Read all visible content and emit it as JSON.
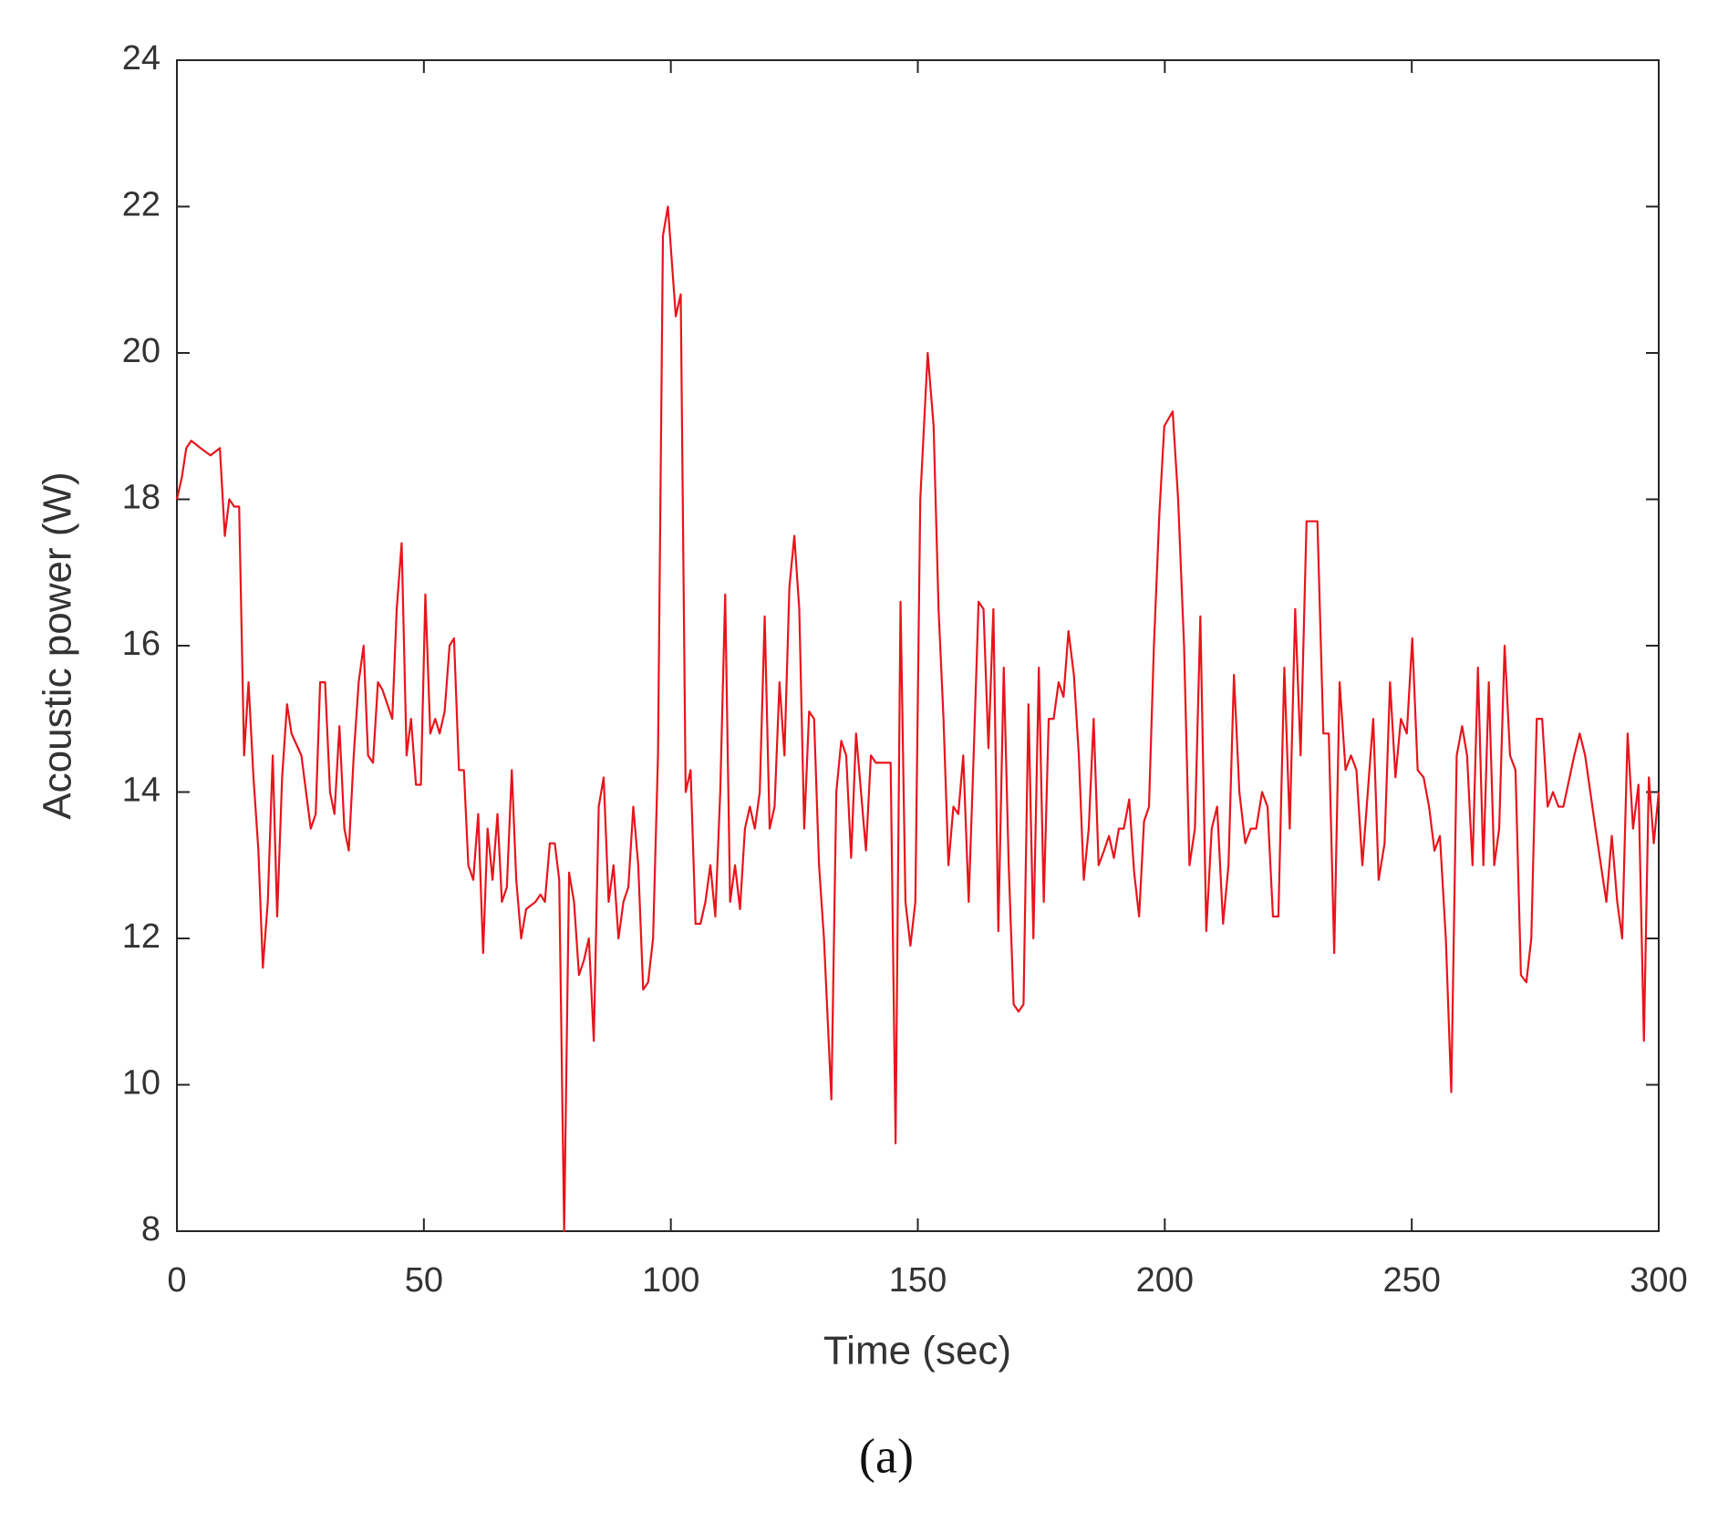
{
  "chart_data": {
    "type": "line",
    "title": "(a)",
    "xlabel": "Time (sec)",
    "ylabel": "Acoustic power (W)",
    "x": [
      0,
      1,
      1.9,
      2.9,
      4.8,
      6.8,
      8.7,
      9.7,
      10.6,
      11.6,
      12.6,
      13.6,
      14.5,
      15.5,
      16.5,
      17.4,
      18.4,
      19.4,
      20.3,
      21.3,
      22.3,
      23.2,
      25.2,
      27.1,
      28.1,
      29,
      30,
      31,
      31.9,
      32.9,
      33.9,
      34.8,
      35.8,
      36.8,
      37.8,
      38.7,
      39.7,
      40.7,
      41.6,
      42.6,
      43.6,
      44.5,
      45.5,
      46.5,
      47.4,
      48.4,
      49.4,
      50.3,
      51.3,
      52.3,
      53.2,
      54.2,
      55.2,
      56.1,
      57.1,
      58.1,
      59,
      60,
      61,
      62,
      62.9,
      63.9,
      64.9,
      65.8,
      66.8,
      67.8,
      68.7,
      69.7,
      70.7,
      72.6,
      73.6,
      74.5,
      75.5,
      76.5,
      77.4,
      78.4,
      79.4,
      80.4,
      81.4,
      82.4,
      83.4,
      84.4,
      85.4,
      86.4,
      87.4,
      88.4,
      89.4,
      90.4,
      91.4,
      92.4,
      93.4,
      94.4,
      95.4,
      96.4,
      97.4,
      98.4,
      99.4,
      101,
      102,
      103,
      104,
      105,
      106,
      107,
      108,
      109,
      110,
      111,
      112,
      113,
      114,
      115,
      116,
      117,
      118,
      119,
      120,
      121,
      122,
      123,
      124,
      125,
      126,
      127,
      128,
      129,
      130,
      131,
      132.5,
      133.5,
      134.5,
      135.5,
      136.5,
      137.5,
      138.5,
      139.5,
      140.5,
      141.5,
      143.5,
      144.5,
      145.5,
      146.5,
      147.5,
      148.5,
      149.5,
      150.5,
      152,
      153.2,
      154.2,
      155.2,
      156.2,
      157.2,
      158.2,
      159.2,
      160.3,
      161.3,
      162.3,
      163.3,
      164.3,
      165.3,
      166.3,
      167.4,
      168.4,
      169.4,
      170.4,
      171.4,
      172.4,
      173.4,
      174.5,
      175.5,
      176.5,
      177.5,
      178.5,
      179.5,
      180.5,
      181.6,
      182.6,
      183.6,
      184.6,
      185.6,
      186.6,
      187.7,
      188.7,
      189.7,
      190.7,
      191.7,
      192.8,
      193.8,
      194.8,
      195.8,
      196.8,
      197.8,
      198.9,
      199.9,
      201.6,
      202.7,
      203.9,
      205,
      206.1,
      207.2,
      208.4,
      209.5,
      210.6,
      211.8,
      212.9,
      214,
      215.1,
      216.3,
      217.4,
      218.5,
      219.7,
      220.8,
      221.9,
      223,
      224.2,
      225.3,
      226.4,
      227.5,
      228.7,
      229.8,
      230.9,
      232.1,
      233.2,
      234.3,
      235.4,
      236.6,
      237.7,
      238.8,
      240,
      241.1,
      242.2,
      243.3,
      244.5,
      245.6,
      246.7,
      247.8,
      249,
      250.1,
      251.2,
      252.4,
      253.5,
      254.6,
      255.7,
      256.9,
      258,
      259.1,
      260.2,
      261.2,
      262.3,
      263.4,
      264.5,
      265.6,
      266.7,
      267.7,
      268.8,
      269.9,
      271,
      272.1,
      273.2,
      274.2,
      275.3,
      276.4,
      277.5,
      278.6,
      279.7,
      280.7,
      282.9,
      284,
      285.1,
      287.2,
      288.3,
      289.4,
      290.5,
      291.6,
      292.6,
      293.7,
      294.8,
      295.9,
      297,
      298,
      299,
      300
    ],
    "series": [
      {
        "color": "#e8141c",
        "values": [
          18.0,
          18.3,
          18.7,
          18.8,
          18.7,
          18.6,
          18.7,
          17.5,
          18.0,
          17.9,
          17.9,
          14.5,
          15.5,
          14.2,
          13.2,
          11.6,
          12.5,
          14.5,
          12.3,
          14.2,
          15.2,
          14.8,
          14.5,
          13.5,
          13.7,
          15.5,
          15.5,
          14.0,
          13.7,
          14.9,
          13.5,
          13.2,
          14.5,
          15.5,
          16.0,
          14.5,
          14.4,
          15.5,
          15.4,
          15.2,
          15.0,
          16.5,
          17.4,
          14.5,
          15.0,
          14.1,
          14.1,
          16.7,
          14.8,
          15.0,
          14.8,
          15.1,
          16.0,
          16.1,
          14.3,
          14.3,
          13.0,
          12.8,
          13.7,
          11.8,
          13.5,
          12.8,
          13.7,
          12.5,
          12.7,
          14.3,
          12.8,
          12.0,
          12.4,
          12.5,
          12.6,
          12.5,
          13.3,
          13.3,
          12.8,
          8.0,
          12.9,
          12.5,
          11.5,
          11.7,
          12.0,
          10.6,
          13.8,
          14.2,
          12.5,
          13.0,
          12.0,
          12.5,
          12.7,
          13.8,
          13.0,
          11.3,
          11.4,
          12.0,
          14.5,
          21.6,
          22.0,
          20.5,
          20.8,
          14.0,
          14.3,
          12.2,
          12.2,
          12.5,
          13.0,
          12.3,
          14.0,
          16.7,
          12.5,
          13.0,
          12.4,
          13.5,
          13.8,
          13.5,
          14.0,
          16.4,
          13.5,
          13.8,
          15.5,
          14.5,
          16.8,
          17.5,
          16.5,
          13.5,
          15.1,
          15.0,
          13.0,
          12.0,
          9.8,
          14.0,
          14.7,
          14.5,
          13.1,
          14.8,
          14.0,
          13.2,
          14.5,
          14.4,
          14.4,
          14.4,
          9.2,
          16.6,
          12.5,
          11.9,
          12.5,
          18.0,
          20.0,
          19.0,
          16.5,
          15.0,
          13.0,
          13.8,
          13.7,
          14.5,
          12.5,
          14.5,
          16.6,
          16.5,
          14.6,
          16.5,
          12.1,
          15.7,
          13.0,
          11.1,
          11.0,
          11.1,
          15.2,
          12.0,
          15.7,
          12.5,
          15.0,
          15.0,
          15.5,
          15.3,
          16.2,
          15.6,
          14.5,
          12.8,
          13.5,
          15.0,
          13.0,
          13.2,
          13.4,
          13.1,
          13.5,
          13.5,
          13.9,
          12.9,
          12.3,
          13.6,
          13.8,
          16.0,
          17.8,
          19.0,
          19.2,
          18.0,
          16.0,
          13.0,
          13.5,
          16.4,
          12.1,
          13.5,
          13.8,
          12.2,
          13.0,
          15.6,
          14.0,
          13.3,
          13.5,
          13.5,
          14.0,
          13.8,
          12.3,
          12.3,
          15.7,
          13.5,
          16.5,
          14.5,
          17.7,
          17.7,
          17.7,
          14.8,
          14.8,
          11.8,
          15.5,
          14.3,
          14.5,
          14.3,
          13.0,
          14.0,
          15.0,
          12.8,
          13.3,
          15.5,
          14.2,
          15.0,
          14.8,
          16.1,
          14.3,
          14.2,
          13.8,
          13.2,
          13.4,
          12.0,
          9.9,
          14.5,
          14.9,
          14.5,
          13.0,
          15.7,
          13.0,
          15.5,
          13.0,
          13.5,
          16.0,
          14.5,
          14.3,
          11.5,
          11.4,
          12.0,
          15.0,
          15.0,
          13.8,
          14.0,
          13.8,
          13.8,
          14.5,
          14.8,
          14.5,
          13.5,
          13.0,
          12.5,
          13.4,
          12.5,
          12.0,
          14.8,
          13.5,
          14.1,
          10.6,
          14.2,
          13.3,
          14.0
        ]
      }
    ],
    "xlim": [
      0,
      300
    ],
    "xticks": [
      0,
      50,
      100,
      150,
      200,
      250,
      300
    ],
    "ylim": [
      8,
      24
    ],
    "yticks": [
      8,
      10,
      12,
      14,
      16,
      18,
      20,
      22,
      24
    ],
    "grid": false
  }
}
